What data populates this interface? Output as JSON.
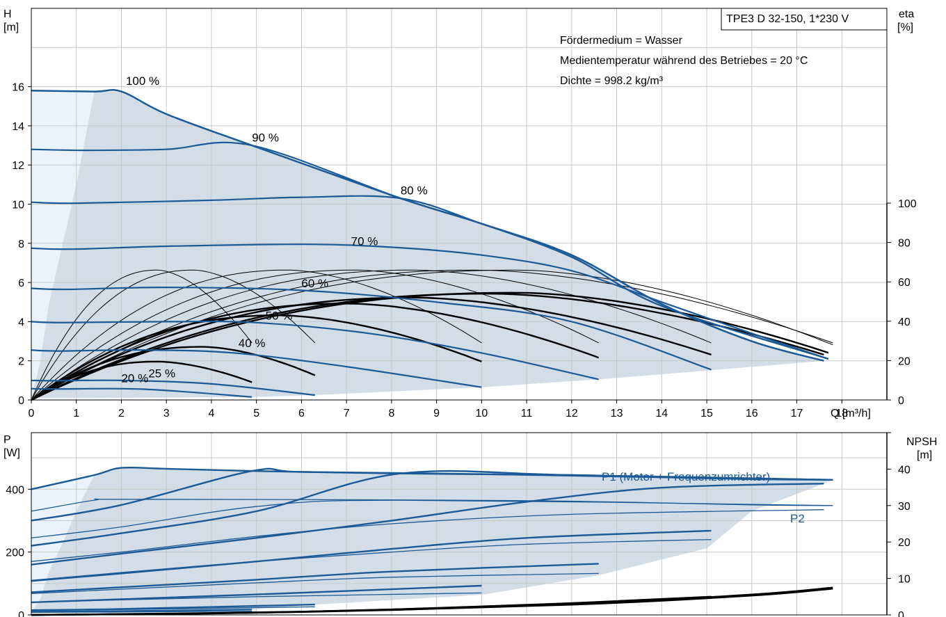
{
  "chart_data": [
    {
      "type": "line",
      "panel": "head-efficiency",
      "title": "TPE3 D 32-150, 1*230 V",
      "annotations": [
        "Fördermedium = Wasser",
        "Medientemperatur während des Betriebes = 20 °C",
        "Dichte = 998.2 kg/m³"
      ],
      "xlabel": "Q [m³/h]",
      "ylabel_left": [
        "H",
        "[m]"
      ],
      "ylabel_right": [
        "eta",
        "[%]"
      ],
      "xlim": [
        0,
        19
      ],
      "ylim": [
        0,
        20
      ],
      "eta_lim": [
        0,
        100
      ],
      "grid": true,
      "x_ticks": [
        0,
        1,
        2,
        3,
        4,
        5,
        6,
        7,
        8,
        9,
        10,
        11,
        12,
        13,
        14,
        15,
        16,
        17,
        18
      ],
      "y_ticks": [
        0,
        2,
        4,
        6,
        8,
        10,
        12,
        14,
        16
      ],
      "eta_ticks": [
        0,
        20,
        40,
        60,
        80,
        100
      ],
      "envelope": {
        "max": [
          [
            0,
            15.8
          ],
          [
            1.4,
            15.75
          ],
          [
            2.0,
            15.75
          ],
          [
            3,
            14.6
          ],
          [
            4.9,
            13.0
          ],
          [
            8.2,
            10.3
          ],
          [
            10,
            9.0
          ],
          [
            12,
            7.4
          ],
          [
            14,
            4.9
          ],
          [
            16,
            3.0
          ],
          [
            17.6,
            2.0
          ]
        ],
        "min": [
          [
            17.6,
            2.0
          ],
          [
            15,
            1.5
          ],
          [
            12.6,
            1.05
          ],
          [
            10,
            0.65
          ],
          [
            6.3,
            0.25
          ],
          [
            4.9,
            0.15
          ],
          [
            1.4,
            0.1
          ],
          [
            0,
            0.1
          ]
        ],
        "low_flow": [
          [
            1.4,
            15.75
          ],
          [
            1.0,
            11
          ],
          [
            0.7,
            8
          ],
          [
            0.4,
            5
          ],
          [
            0.2,
            2
          ],
          [
            0,
            0
          ]
        ]
      },
      "series": [
        {
          "name": "100 %",
          "points": [
            [
              0,
              15.8
            ],
            [
              1.4,
              15.75
            ],
            [
              2.0,
              15.75
            ],
            [
              3,
              14.6
            ],
            [
              4.9,
              13.0
            ],
            [
              8.2,
              10.3
            ],
            [
              10,
              9.0
            ],
            [
              12,
              7.4
            ],
            [
              14,
              4.9
            ],
            [
              16,
              3.0
            ],
            [
              17.6,
              2.0
            ]
          ]
        },
        {
          "name": "90 %",
          "points": [
            [
              0,
              12.8
            ],
            [
              1.2,
              12.75
            ],
            [
              3,
              12.8
            ],
            [
              4.9,
              13.0
            ],
            [
              8.2,
              10.3
            ],
            [
              10,
              9.0
            ],
            [
              12,
              7.3
            ],
            [
              14,
              4.8
            ],
            [
              17.7,
              2.1
            ]
          ]
        },
        {
          "name": "80 %",
          "points": [
            [
              0,
              10.1
            ],
            [
              1.0,
              10.05
            ],
            [
              4,
              10.2
            ],
            [
              6,
              10.35
            ],
            [
              8.2,
              10.3
            ],
            [
              10,
              9.0
            ],
            [
              12,
              7.3
            ],
            [
              14,
              4.8
            ],
            [
              17.7,
              2.1
            ]
          ]
        },
        {
          "name": "70 %",
          "points": [
            [
              0,
              7.75
            ],
            [
              0.9,
              7.7
            ],
            [
              3,
              7.85
            ],
            [
              6,
              7.95
            ],
            [
              8,
              7.8
            ],
            [
              10,
              7.4
            ],
            [
              12,
              6.6
            ],
            [
              14,
              5.0
            ],
            [
              16,
              3.4
            ],
            [
              17.7,
              2.1
            ]
          ]
        },
        {
          "name": "60 %",
          "points": [
            [
              0,
              5.7
            ],
            [
              0.8,
              5.65
            ],
            [
              3,
              5.75
            ],
            [
              6,
              5.6
            ],
            [
              9,
              5.0
            ],
            [
              12,
              4.0
            ],
            [
              15.1,
              1.55
            ]
          ]
        },
        {
          "name": "50 %",
          "points": [
            [
              0,
              4.0
            ],
            [
              0.7,
              3.95
            ],
            [
              3,
              4.0
            ],
            [
              5,
              3.95
            ],
            [
              7.5,
              3.4
            ],
            [
              10,
              2.4
            ],
            [
              12.6,
              1.05
            ]
          ]
        },
        {
          "name": "40 %",
          "points": [
            [
              0,
              2.55
            ],
            [
              0.6,
              2.5
            ],
            [
              2.5,
              2.55
            ],
            [
              4.5,
              2.4
            ],
            [
              7,
              1.7
            ],
            [
              10,
              0.65
            ]
          ]
        },
        {
          "name": "25 %",
          "points": [
            [
              0,
              1.0
            ],
            [
              0.5,
              0.98
            ],
            [
              2,
              1.0
            ],
            [
              4,
              0.82
            ],
            [
              6.3,
              0.25
            ]
          ]
        },
        {
          "name": "20 %",
          "points": [
            [
              0,
              0.58
            ],
            [
              0.5,
              0.56
            ],
            [
              2.5,
              0.55
            ],
            [
              4.9,
              0.15
            ]
          ]
        }
      ],
      "eta_thin_curves": [
        {
          "peak_q": 2.8,
          "peak": 66,
          "end_q": 4.9,
          "end": 29
        },
        {
          "peak_q": 3.6,
          "peak": 66,
          "end_q": 6.3,
          "end": 29
        },
        {
          "peak_q": 5.7,
          "peak": 66,
          "end_q": 10.0,
          "end": 29
        },
        {
          "peak_q": 7.2,
          "peak": 66,
          "end_q": 12.6,
          "end": 29
        },
        {
          "peak_q": 8.5,
          "peak": 66,
          "end_q": 15.1,
          "end": 29
        },
        {
          "peak_q": 9.9,
          "peak": 66,
          "end_q": 17.8,
          "end": 29
        },
        {
          "peak_q": 10.8,
          "peak": 66,
          "end_q": 17.8,
          "end": 28
        }
      ],
      "eta_thick_curves": [
        {
          "peak_q": 2.8,
          "peak": 19.5,
          "end_q": 4.9,
          "end": 9
        },
        {
          "peak_q": 3.8,
          "peak": 27,
          "end_q": 6.3,
          "end": 12.5
        },
        {
          "peak_q": 5.5,
          "peak": 43,
          "end_q": 10.0,
          "end": 19.5
        },
        {
          "peak_q": 7.0,
          "peak": 49,
          "end_q": 12.6,
          "end": 21.5
        },
        {
          "peak_q": 8.5,
          "peak": 52,
          "end_q": 15.1,
          "end": 23
        },
        {
          "peak_q": 10.2,
          "peak": 54,
          "end_q": 17.6,
          "end": 23
        },
        {
          "peak_q": 10.8,
          "peak": 54.5,
          "end_q": 17.7,
          "end": 24
        }
      ]
    },
    {
      "type": "line",
      "panel": "power-npsh",
      "ylabel_left": [
        "P",
        "[W]"
      ],
      "ylabel_right": [
        "NPSH",
        "[m]"
      ],
      "xlim": [
        0,
        19
      ],
      "ylim": [
        0,
        580
      ],
      "npsh_lim": [
        0,
        50
      ],
      "grid": true,
      "y_ticks": [
        0,
        200,
        400
      ],
      "npsh_ticks": [
        0,
        10,
        20,
        30,
        40
      ],
      "envelope": {
        "max": [
          [
            0,
            400
          ],
          [
            1.4,
            445
          ],
          [
            2.0,
            468
          ],
          [
            3,
            465
          ],
          [
            4.9,
            458
          ],
          [
            6,
            455
          ],
          [
            7,
            452
          ],
          [
            8.2,
            450
          ],
          [
            10,
            448
          ],
          [
            12,
            445
          ],
          [
            14,
            438
          ],
          [
            16,
            432
          ],
          [
            17.8,
            430
          ]
        ],
        "min": [
          [
            17.6,
            418
          ],
          [
            16,
            330
          ],
          [
            15,
            212
          ],
          [
            12.6,
            126
          ],
          [
            10,
            64
          ],
          [
            6.3,
            33
          ],
          [
            4.9,
            17
          ],
          [
            1.4,
            12
          ],
          [
            0,
            10
          ]
        ],
        "low_flow": [
          [
            1.4,
            445
          ],
          [
            1.0,
            330
          ],
          [
            0.7,
            230
          ],
          [
            0.4,
            140
          ],
          [
            0.2,
            50
          ],
          [
            0,
            10
          ]
        ]
      },
      "p1_label": "P1 (Motor + Frequenzumrichter)",
      "p2_label": "P2",
      "p1_curves": [
        {
          "points": [
            [
              0,
              400
            ],
            [
              1.4,
              445
            ],
            [
              2.0,
              468
            ],
            [
              3,
              465
            ],
            [
              4.9,
              458
            ],
            [
              8.2,
              450
            ],
            [
              12,
              445
            ],
            [
              14,
              438
            ],
            [
              16,
              432
            ],
            [
              17.8,
              430
            ]
          ]
        },
        {
          "points": [
            [
              0,
              300
            ],
            [
              2,
              350
            ],
            [
              4.9,
              458
            ],
            [
              6,
              455
            ],
            [
              10,
              448
            ],
            [
              14,
              438
            ],
            [
              17.8,
              430
            ]
          ]
        },
        {
          "points": [
            [
              0,
              220
            ],
            [
              2,
              260
            ],
            [
              5,
              330
            ],
            [
              8.2,
              450
            ],
            [
              12,
              445
            ],
            [
              17.8,
              430
            ]
          ]
        },
        {
          "points": [
            [
              0,
              160
            ],
            [
              2,
              195
            ],
            [
              5,
              245
            ],
            [
              8,
              300
            ],
            [
              11,
              360
            ],
            [
              14,
              405
            ],
            [
              17.6,
              418
            ]
          ]
        },
        {
          "points": [
            [
              0,
              108
            ],
            [
              2,
              132
            ],
            [
              5,
              170
            ],
            [
              8,
              210
            ],
            [
              11,
              245
            ],
            [
              15.1,
              268
            ]
          ]
        },
        {
          "points": [
            [
              0,
              72
            ],
            [
              2,
              88
            ],
            [
              5,
              112
            ],
            [
              8,
              138
            ],
            [
              12.6,
              163
            ]
          ]
        },
        {
          "points": [
            [
              0,
              40
            ],
            [
              2,
              50
            ],
            [
              5,
              65
            ],
            [
              10,
              93
            ]
          ]
        },
        {
          "points": [
            [
              0,
              15
            ],
            [
              2,
              19
            ],
            [
              6.3,
              33
            ]
          ]
        },
        {
          "points": [
            [
              0,
              10
            ],
            [
              2,
              12
            ],
            [
              4.9,
              17
            ]
          ]
        }
      ],
      "p2_curves": [
        {
          "points": [
            [
              0,
              330
            ],
            [
              1.4,
              365
            ],
            [
              2.0,
              368
            ],
            [
              8,
              366
            ],
            [
              12,
              362
            ],
            [
              16,
              350
            ],
            [
              17.8,
              348
            ]
          ]
        },
        {
          "points": [
            [
              0,
              245
            ],
            [
              2,
              280
            ],
            [
              5,
              345
            ],
            [
              8.2,
              365
            ],
            [
              17.8,
              348
            ]
          ]
        },
        {
          "points": [
            [
              0,
              170
            ],
            [
              2,
              200
            ],
            [
              5,
              250
            ],
            [
              8,
              290
            ],
            [
              12,
              320
            ],
            [
              17.6,
              335
            ]
          ]
        },
        {
          "points": [
            [
              0,
              110
            ],
            [
              2,
              135
            ],
            [
              5,
              170
            ],
            [
              8,
              200
            ],
            [
              11,
              225
            ],
            [
              15.1,
              240
            ]
          ]
        },
        {
          "points": [
            [
              0,
              68
            ],
            [
              2,
              82
            ],
            [
              5,
              102
            ],
            [
              8,
              120
            ],
            [
              12.6,
              132
            ]
          ]
        },
        {
          "points": [
            [
              0,
              40
            ],
            [
              2,
              48
            ],
            [
              5,
              58
            ],
            [
              10,
              70
            ]
          ]
        },
        {
          "points": [
            [
              0,
              14
            ],
            [
              2,
              17
            ],
            [
              6.3,
              26
            ]
          ]
        },
        {
          "points": [
            [
              0,
              8
            ],
            [
              2,
              9
            ],
            [
              4.9,
              12
            ]
          ]
        }
      ],
      "npsh_curves": [
        {
          "points": [
            [
              0,
              0
            ],
            [
              4,
              0.4
            ],
            [
              8,
              1.5
            ],
            [
              12.6,
              3.5
            ]
          ]
        },
        {
          "points": [
            [
              0,
              0
            ],
            [
              5,
              0.6
            ],
            [
              10,
              2.2
            ],
            [
              15.1,
              5
            ]
          ]
        },
        {
          "points": [
            [
              0,
              0
            ],
            [
              6,
              0.9
            ],
            [
              12,
              3.0
            ],
            [
              16,
              5.6
            ],
            [
              17.8,
              7.5
            ]
          ]
        },
        {
          "points": [
            [
              0,
              0
            ],
            [
              6,
              0.8
            ],
            [
              12,
              2.8
            ],
            [
              16,
              5.3
            ],
            [
              17.8,
              7.2
            ]
          ]
        }
      ]
    }
  ]
}
